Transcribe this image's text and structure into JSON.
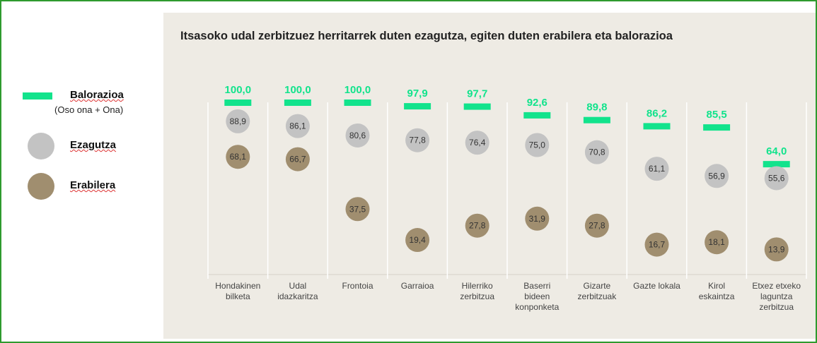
{
  "chart_data": {
    "type": "dot",
    "title": "Itsasoko udal zerbitzuez herritarrek duten ezagutza, egiten duten erabilera eta balorazioa",
    "categories": [
      "Hondakinen\nbilketa",
      "Udal\nidazkaritza",
      "Frontoia",
      "Garraioa",
      "Hilerriko\nzerbitzua",
      "Baserri\nbideen\nkonponketa",
      "Gizarte\nzerbitzuak",
      "Gazte lokala",
      "Kirol\neskaintza",
      "Etxez etxeko\nlaguntza\nzerbitzua"
    ],
    "ylim": [
      0,
      100
    ],
    "legend_note": "(Oso ona + Ona)",
    "series": [
      {
        "name": "Balorazioa",
        "color": "#12e38c",
        "marker": "bar",
        "values": [
          100.0,
          100.0,
          100.0,
          97.9,
          97.7,
          92.6,
          89.8,
          86.2,
          85.5,
          64.0
        ],
        "value_labels": [
          "100,0",
          "100,0",
          "100,0",
          "97,9",
          "97,7",
          "92,6",
          "89,8",
          "86,2",
          "85,5",
          "64,0"
        ]
      },
      {
        "name": "Ezagutza",
        "color": "#c3c3c3",
        "marker": "circle",
        "values": [
          88.9,
          86.1,
          80.6,
          77.8,
          76.4,
          75.0,
          70.8,
          61.1,
          56.9,
          55.6
        ],
        "value_labels": [
          "88,9",
          "86,1",
          "80,6",
          "77,8",
          "76,4",
          "75,0",
          "70,8",
          "61,1",
          "56,9",
          "55,6"
        ]
      },
      {
        "name": "Erabilera",
        "color": "#a08e6f",
        "marker": "circle",
        "values": [
          68.1,
          66.7,
          37.5,
          19.4,
          27.8,
          31.9,
          27.8,
          16.7,
          18.1,
          13.9
        ],
        "value_labels": [
          "68,1",
          "66,7",
          "37,5",
          "19,4",
          "27,8",
          "31,9",
          "27,8",
          "16,7",
          "18,1",
          "13,9"
        ]
      }
    ]
  }
}
